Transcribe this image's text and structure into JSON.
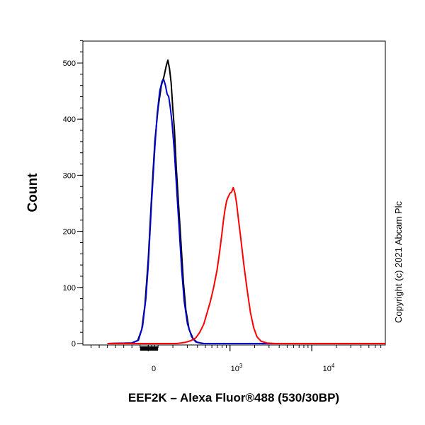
{
  "chart_data": {
    "type": "line",
    "title": "",
    "xlabel": "EEF2K – Alexa Fluor®488 (530/30BP)",
    "ylabel": "Count",
    "annotation": "Copyright (c) 2021 Abcam Plc",
    "xscale": "biexponential",
    "ylim": [
      0,
      550
    ],
    "yticks": [
      0,
      100,
      200,
      300,
      400,
      500
    ],
    "xtick_labels": [
      {
        "base": "0",
        "exp": ""
      },
      {
        "base": "10",
        "exp": "3"
      },
      {
        "base": "10",
        "exp": "4"
      }
    ],
    "grid": false,
    "series": [
      {
        "color": "#000000",
        "points": [
          [
            -0.5,
            0
          ],
          [
            -0.2,
            1
          ],
          [
            -0.13,
            5
          ],
          [
            -0.08,
            25
          ],
          [
            -0.04,
            70
          ],
          [
            0,
            150
          ],
          [
            0.04,
            260
          ],
          [
            0.08,
            360
          ],
          [
            0.12,
            420
          ],
          [
            0.16,
            460
          ],
          [
            0.19,
            475
          ],
          [
            0.22,
            495
          ],
          [
            0.24,
            505
          ],
          [
            0.26,
            490
          ],
          [
            0.28,
            465
          ],
          [
            0.3,
            420
          ],
          [
            0.32,
            380
          ],
          [
            0.34,
            320
          ],
          [
            0.37,
            250
          ],
          [
            0.4,
            180
          ],
          [
            0.43,
            110
          ],
          [
            0.46,
            60
          ],
          [
            0.5,
            25
          ],
          [
            0.55,
            8
          ],
          [
            0.6,
            2
          ],
          [
            0.68,
            0
          ],
          [
            2.9,
            0
          ]
        ]
      },
      {
        "color": "#0000cc",
        "points": [
          [
            -0.5,
            0
          ],
          [
            -0.2,
            1
          ],
          [
            -0.12,
            6
          ],
          [
            -0.07,
            30
          ],
          [
            -0.03,
            80
          ],
          [
            0,
            140
          ],
          [
            0.04,
            250
          ],
          [
            0.08,
            350
          ],
          [
            0.11,
            410
          ],
          [
            0.14,
            450
          ],
          [
            0.17,
            468
          ],
          [
            0.19,
            470
          ],
          [
            0.21,
            460
          ],
          [
            0.23,
            445
          ],
          [
            0.25,
            440
          ],
          [
            0.27,
            420
          ],
          [
            0.29,
            395
          ],
          [
            0.32,
            340
          ],
          [
            0.35,
            270
          ],
          [
            0.38,
            200
          ],
          [
            0.41,
            130
          ],
          [
            0.44,
            75
          ],
          [
            0.48,
            35
          ],
          [
            0.53,
            12
          ],
          [
            0.58,
            3
          ],
          [
            0.66,
            0
          ],
          [
            2.9,
            0
          ]
        ]
      },
      {
        "color": "#ff0000",
        "points": [
          [
            -0.5,
            0
          ],
          [
            0.35,
            0
          ],
          [
            0.45,
            2
          ],
          [
            0.52,
            5
          ],
          [
            0.58,
            10
          ],
          [
            0.63,
            20
          ],
          [
            0.68,
            35
          ],
          [
            0.72,
            55
          ],
          [
            0.76,
            75
          ],
          [
            0.8,
            100
          ],
          [
            0.84,
            130
          ],
          [
            0.87,
            160
          ],
          [
            0.9,
            195
          ],
          [
            0.92,
            220
          ],
          [
            0.94,
            240
          ],
          [
            0.96,
            255
          ],
          [
            0.98,
            262
          ],
          [
            1.0,
            268
          ],
          [
            1.02,
            270
          ],
          [
            1.04,
            278
          ],
          [
            1.06,
            268
          ],
          [
            1.08,
            250
          ],
          [
            1.1,
            225
          ],
          [
            1.13,
            190
          ],
          [
            1.17,
            140
          ],
          [
            1.21,
            95
          ],
          [
            1.25,
            55
          ],
          [
            1.29,
            28
          ],
          [
            1.33,
            12
          ],
          [
            1.38,
            4
          ],
          [
            1.45,
            1
          ],
          [
            1.55,
            0
          ],
          [
            2.9,
            0
          ]
        ]
      }
    ]
  }
}
